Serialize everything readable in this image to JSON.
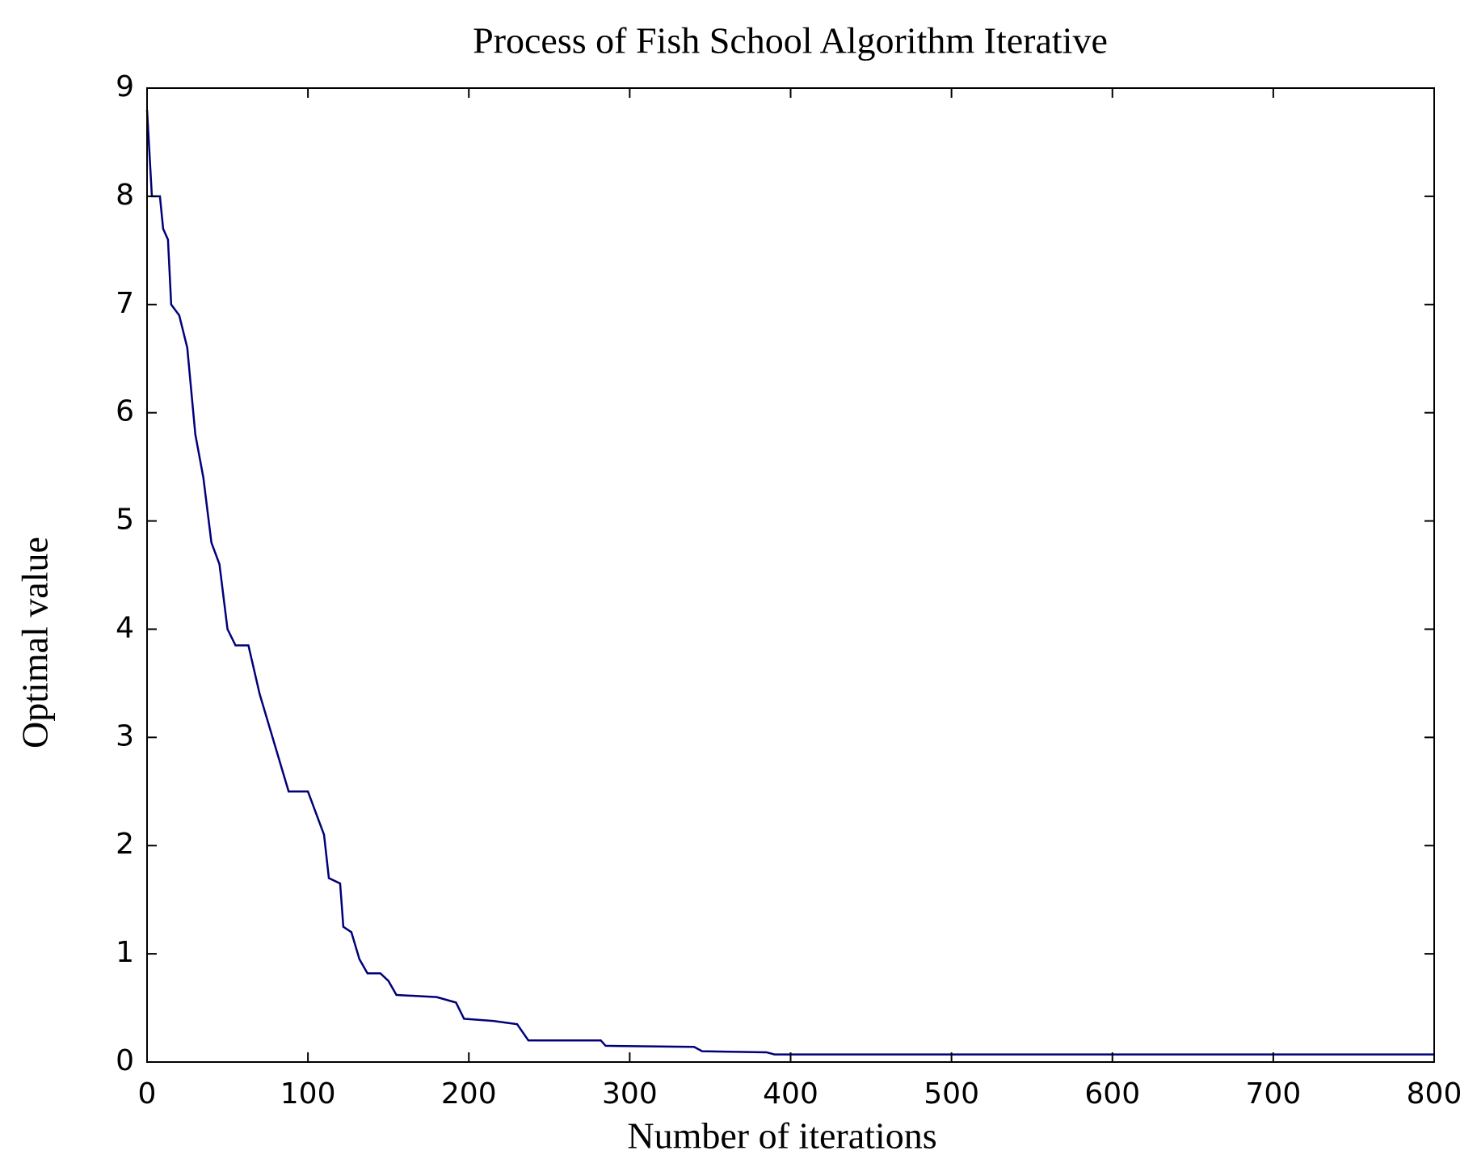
{
  "chart_data": {
    "type": "line",
    "title": "Process of Fish School Algorithm Iterative",
    "x_label": "Number of iterations",
    "y_label": "Optimal value",
    "x": [
      0,
      3,
      8,
      10,
      13,
      15,
      20,
      25,
      30,
      35,
      40,
      45,
      50,
      55,
      63,
      70,
      80,
      88,
      100,
      105,
      110,
      113,
      120,
      122,
      127,
      132,
      137,
      145,
      150,
      155,
      180,
      192,
      197,
      215,
      230,
      237,
      260,
      282,
      285,
      340,
      345,
      385,
      390,
      800
    ],
    "series": [
      {
        "name": "Optimal value",
        "color": "#00007a",
        "values": [
          8.8,
          8.0,
          8.0,
          7.7,
          7.6,
          7.0,
          6.9,
          6.6,
          5.8,
          5.4,
          4.8,
          4.6,
          4.0,
          3.85,
          3.85,
          3.4,
          2.9,
          2.5,
          2.5,
          2.3,
          2.1,
          1.7,
          1.65,
          1.25,
          1.2,
          0.95,
          0.82,
          0.82,
          0.75,
          0.62,
          0.6,
          0.55,
          0.4,
          0.38,
          0.35,
          0.2,
          0.2,
          0.2,
          0.15,
          0.14,
          0.1,
          0.09,
          0.07,
          0.07
        ]
      }
    ],
    "xlim": [
      0,
      800
    ],
    "ylim": [
      0,
      9
    ],
    "xticks": [
      0,
      100,
      200,
      300,
      400,
      500,
      600,
      700,
      800
    ],
    "yticks": [
      0,
      1,
      2,
      3,
      4,
      5,
      6,
      7,
      8,
      9
    ],
    "grid": false
  }
}
